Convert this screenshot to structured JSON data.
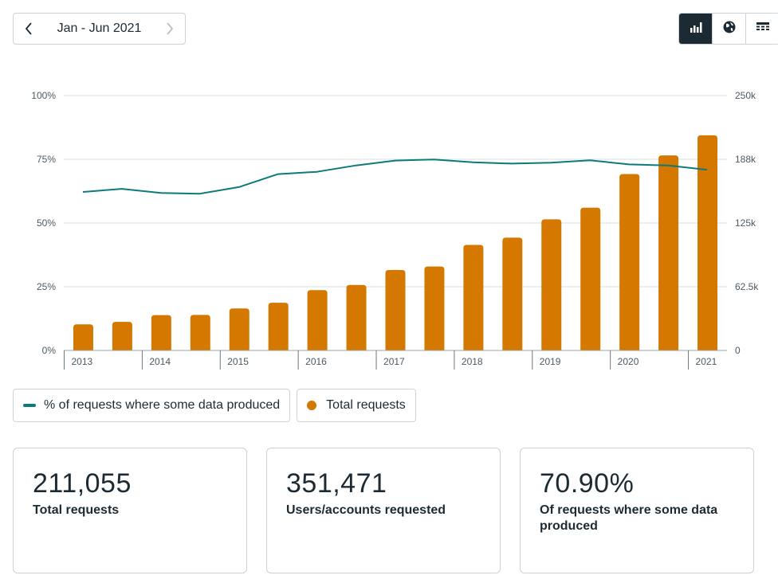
{
  "period": {
    "label": "Jan - Jun 2021",
    "prev_icon": "chevron-left-icon",
    "next_icon": "chevron-right-icon"
  },
  "view_toggle": {
    "active": "bar-chart",
    "icons": [
      "bar-chart-icon",
      "globe-icon",
      "table-icon"
    ]
  },
  "colors": {
    "bar": "#d47800",
    "line": "#0d7a7a",
    "grid": "#d8dde2",
    "dark": "#1c2b33"
  },
  "chart_data": {
    "type": "bar",
    "title": "",
    "categories": [
      "2013 H1",
      "2013 H2",
      "2014 H1",
      "2014 H2",
      "2015 H1",
      "2015 H2",
      "2016 H1",
      "2016 H2",
      "2017 H1",
      "2017 H2",
      "2018 H1",
      "2018 H2",
      "2019 H1",
      "2019 H2",
      "2020 H1",
      "2020 H2",
      "2021 H1"
    ],
    "x_tick_labels": [
      "2013",
      "2014",
      "2015",
      "2016",
      "2017",
      "2018",
      "2019",
      "2020",
      "2021"
    ],
    "series": [
      {
        "name": "Total requests",
        "axis": "right",
        "type": "bar",
        "values": [
          25600,
          28000,
          34700,
          34900,
          41200,
          46800,
          59200,
          64300,
          78900,
          82300,
          103500,
          110600,
          128600,
          140000,
          173000,
          191300,
          211055
        ]
      },
      {
        "name": "% of requests where some data produced",
        "axis": "left",
        "type": "line",
        "values": [
          62.2,
          63.4,
          61.8,
          61.5,
          64.1,
          69.2,
          70.1,
          72.6,
          74.5,
          74.9,
          73.8,
          73.3,
          73.7,
          74.6,
          73.0,
          72.6,
          70.9
        ]
      }
    ],
    "y_left": {
      "ticks": [
        "0%",
        "25%",
        "50%",
        "75%",
        "100%"
      ],
      "ylim": [
        0,
        100
      ]
    },
    "y_right": {
      "ticks": [
        "0",
        "62.5k",
        "125k",
        "188k",
        "250k"
      ],
      "ylim": [
        0,
        250000
      ]
    },
    "grid": true
  },
  "legend": {
    "line_label": "% of requests where some data produced",
    "bar_label": "Total requests"
  },
  "stats": [
    {
      "value": "211,055",
      "label": "Total requests"
    },
    {
      "value": "351,471",
      "label": "Users/accounts requested"
    },
    {
      "value": "70.90%",
      "label": "Of requests where some data produced"
    }
  ]
}
